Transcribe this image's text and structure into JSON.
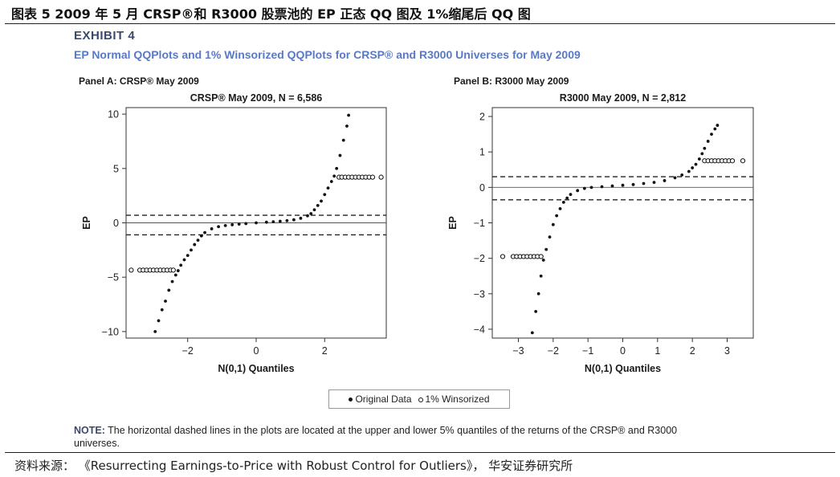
{
  "figure_title": "图表 5 2009 年 5 月 CRSP®和 R3000 股票池的 EP 正态 QQ 图及 1%缩尾后 QQ 图",
  "exhibit": {
    "label": "EXHIBIT 4",
    "subtitle": "EP Normal QQPlots and 1% Winsorized QQPlots for CRSP® and R3000 Universes for May 2009"
  },
  "legend": {
    "original": "Original Data",
    "winsorized": "1% Winsorized"
  },
  "note": {
    "label": "NOTE:",
    "text": " The horizontal dashed lines in the plots are located at the upper and lower 5% quantiles of the returns of the CRSP® and R3000 universes."
  },
  "source": "资料来源： 《Resurrecting Earnings-to-Price with Robust Control for Outliers》， 华安证券研究所",
  "colors": {
    "exhibit_label": "#3b4a6b",
    "exhibit_subtitle": "#5a79c4",
    "points": "#111111"
  },
  "chart_data": [
    {
      "type": "scatter",
      "panel_label": "Panel A: CRSP® May 2009",
      "title": "CRSP® May 2009, N = 6,586",
      "xlabel": "N(0,1) Quantiles",
      "ylabel": "EP",
      "xlim": [
        -3.8,
        3.8
      ],
      "ylim": [
        -10.6,
        10.6
      ],
      "xticks": [
        -2,
        0,
        2
      ],
      "yticks": [
        -10,
        -5,
        0,
        5,
        10
      ],
      "xtick_labels": [
        "−2",
        "0",
        "2"
      ],
      "ytick_labels": [
        "−10",
        "−5",
        "0",
        "5",
        "10"
      ],
      "hlines_dashed": [
        0.7,
        -1.1
      ],
      "hline_solid": 0,
      "grid": false,
      "series": [
        {
          "name": "Original Data",
          "marker": "filled",
          "x": [
            -2.95,
            -2.85,
            -2.75,
            -2.65,
            -2.55,
            -2.45,
            -2.35,
            -2.28,
            -2.2,
            -2.1,
            -2.0,
            -1.9,
            -1.8,
            -1.7,
            -1.6,
            -1.5,
            -1.3,
            -1.1,
            -0.9,
            -0.7,
            -0.5,
            -0.3,
            0.0,
            0.3,
            0.5,
            0.7,
            0.9,
            1.1,
            1.3,
            1.5,
            1.6,
            1.7,
            1.8,
            1.9,
            2.0,
            2.1,
            2.2,
            2.28,
            2.35,
            2.45,
            2.55,
            2.65,
            2.7
          ],
          "y": [
            -10.0,
            -9.0,
            -8.0,
            -7.2,
            -6.2,
            -5.4,
            -4.8,
            -4.4,
            -3.9,
            -3.4,
            -3.0,
            -2.5,
            -2.0,
            -1.6,
            -1.2,
            -0.9,
            -0.55,
            -0.35,
            -0.25,
            -0.18,
            -0.12,
            -0.07,
            0.0,
            0.06,
            0.1,
            0.15,
            0.2,
            0.28,
            0.42,
            0.65,
            0.85,
            1.2,
            1.6,
            2.0,
            2.6,
            3.2,
            3.8,
            4.3,
            5.0,
            6.2,
            7.6,
            8.9,
            9.9
          ]
        },
        {
          "name": "1% Winsorized",
          "marker": "open",
          "x": [
            -3.65,
            -3.4,
            -3.3,
            -3.2,
            -3.1,
            -3.0,
            -2.9,
            -2.8,
            -2.7,
            -2.6,
            -2.5,
            -2.42,
            2.42,
            2.5,
            2.6,
            2.7,
            2.8,
            2.9,
            3.0,
            3.1,
            3.2,
            3.3,
            3.4,
            3.65
          ],
          "y": [
            -4.35,
            -4.35,
            -4.35,
            -4.35,
            -4.35,
            -4.35,
            -4.35,
            -4.35,
            -4.35,
            -4.35,
            -4.35,
            -4.35,
            4.2,
            4.2,
            4.2,
            4.2,
            4.2,
            4.2,
            4.2,
            4.2,
            4.2,
            4.2,
            4.2,
            4.2
          ]
        }
      ]
    },
    {
      "type": "scatter",
      "panel_label": "Panel B: R3000 May 2009",
      "title": "R3000 May 2009, N = 2,812",
      "xlabel": "N(0,1) Quantiles",
      "ylabel": "EP",
      "xlim": [
        -3.75,
        3.75
      ],
      "ylim": [
        -4.25,
        2.25
      ],
      "xticks": [
        -3,
        -2,
        -1,
        0,
        1,
        2,
        3
      ],
      "yticks": [
        -4,
        -3,
        -2,
        -1,
        0,
        1,
        2
      ],
      "xtick_labels": [
        "−3",
        "−2",
        "−1",
        "0",
        "1",
        "2",
        "3"
      ],
      "ytick_labels": [
        "−4",
        "−3",
        "−2",
        "−1",
        "0",
        "1",
        "2"
      ],
      "hlines_dashed": [
        0.3,
        -0.35
      ],
      "hline_solid": 0,
      "grid": false,
      "series": [
        {
          "name": "Original Data",
          "marker": "filled",
          "x": [
            -2.6,
            -2.5,
            -2.42,
            -2.35,
            -2.28,
            -2.2,
            -2.1,
            -2.0,
            -1.9,
            -1.8,
            -1.7,
            -1.6,
            -1.5,
            -1.3,
            -1.1,
            -0.9,
            -0.6,
            -0.3,
            0.0,
            0.3,
            0.6,
            0.9,
            1.2,
            1.5,
            1.7,
            1.9,
            2.0,
            2.1,
            2.2,
            2.28,
            2.35,
            2.45,
            2.55,
            2.65,
            2.72
          ],
          "y": [
            -4.1,
            -3.5,
            -3.0,
            -2.5,
            -2.05,
            -1.75,
            -1.4,
            -1.05,
            -0.8,
            -0.6,
            -0.42,
            -0.3,
            -0.2,
            -0.09,
            -0.03,
            0.0,
            0.02,
            0.04,
            0.06,
            0.08,
            0.11,
            0.14,
            0.19,
            0.27,
            0.35,
            0.45,
            0.55,
            0.65,
            0.8,
            0.95,
            1.1,
            1.3,
            1.5,
            1.65,
            1.75
          ]
        },
        {
          "name": "1% Winsorized",
          "marker": "open",
          "x": [
            -3.45,
            -3.15,
            -3.05,
            -2.95,
            -2.85,
            -2.75,
            -2.65,
            -2.55,
            -2.45,
            -2.35,
            2.35,
            2.45,
            2.55,
            2.65,
            2.75,
            2.85,
            2.95,
            3.05,
            3.15,
            3.45
          ],
          "y": [
            -1.95,
            -1.95,
            -1.95,
            -1.95,
            -1.95,
            -1.95,
            -1.95,
            -1.95,
            -1.95,
            -1.95,
            0.75,
            0.75,
            0.75,
            0.75,
            0.75,
            0.75,
            0.75,
            0.75,
            0.75,
            0.75
          ]
        }
      ]
    }
  ]
}
